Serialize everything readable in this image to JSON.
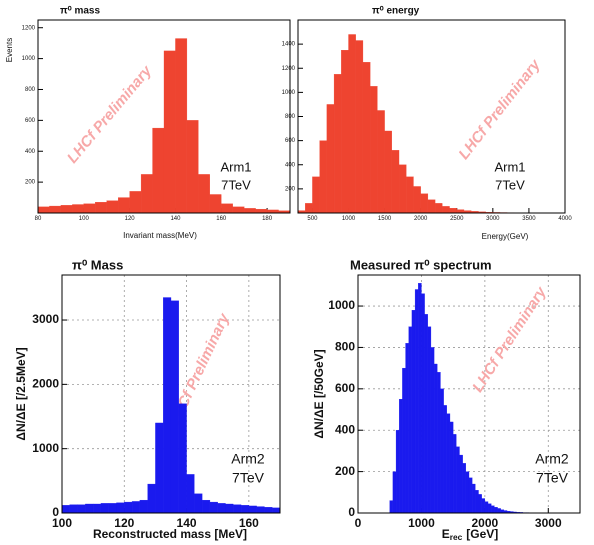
{
  "chart_data": [
    {
      "type": "histogram",
      "title": "π⁰ mass",
      "x_label": "Invariant mass(MeV)",
      "y_label": "Events",
      "annotations": [
        "Arm1",
        "7TeV"
      ],
      "watermark": "LHCf Preliminary",
      "color": "#ee4430",
      "grid": false,
      "xlim": [
        80,
        190
      ],
      "xticks": [
        80,
        100,
        120,
        140,
        160,
        180
      ],
      "ylim": [
        0,
        1250
      ],
      "yticks": [
        200,
        400,
        600,
        800,
        1000,
        1200
      ],
      "bins": [
        80,
        85,
        90,
        95,
        100,
        105,
        110,
        115,
        120,
        125,
        130,
        135,
        140,
        145,
        150,
        155,
        160,
        165,
        170,
        175,
        180,
        185,
        190
      ],
      "values": [
        40,
        45,
        50,
        55,
        60,
        70,
        80,
        100,
        140,
        250,
        550,
        1050,
        1130,
        600,
        250,
        120,
        60,
        40,
        30,
        25,
        20,
        15
      ]
    },
    {
      "type": "histogram",
      "title": "π⁰ energy",
      "x_label": "Energy(GeV)",
      "annotations": [
        "Arm1",
        "7TeV"
      ],
      "watermark": "LHCf Preliminary",
      "color": "#ee4430",
      "grid": false,
      "xlim": [
        300,
        4000
      ],
      "xticks": [
        500,
        1000,
        1500,
        2000,
        2500,
        3000,
        3500,
        4000
      ],
      "ylim": [
        0,
        1600
      ],
      "yticks": [
        200,
        400,
        600,
        800,
        1000,
        1200,
        1400
      ],
      "bins": [
        300,
        400,
        500,
        600,
        700,
        800,
        900,
        1000,
        1100,
        1200,
        1300,
        1400,
        1500,
        1600,
        1700,
        1800,
        1900,
        2000,
        2100,
        2200,
        2300,
        2400,
        2500,
        2600,
        2700,
        2800,
        2900,
        3000,
        3100,
        3200,
        3300,
        3400,
        3500,
        3600,
        3700,
        3800,
        3900,
        4000
      ],
      "values": [
        20,
        80,
        300,
        600,
        900,
        1150,
        1350,
        1480,
        1430,
        1250,
        1050,
        850,
        680,
        520,
        400,
        300,
        220,
        160,
        110,
        80,
        55,
        40,
        28,
        20,
        14,
        10,
        7,
        5,
        4,
        3,
        2,
        2,
        1,
        1,
        1,
        0,
        0
      ]
    },
    {
      "type": "histogram",
      "title": "π⁰ Mass",
      "x_label": "Reconstructed mass [MeV]",
      "y_label": "ΔN/ΔE [/2.5MeV]",
      "annotations": [
        "Arm2",
        "7TeV"
      ],
      "watermark": "LHCf Preliminary",
      "color": "#1a1aee",
      "grid": true,
      "xlim": [
        100,
        170
      ],
      "xticks": [
        100,
        120,
        140,
        160
      ],
      "ylim": [
        0,
        3700
      ],
      "yticks": [
        0,
        1000,
        2000,
        3000
      ],
      "bins": [
        100,
        102.5,
        105,
        107.5,
        110,
        112.5,
        115,
        117.5,
        120,
        122.5,
        125,
        127.5,
        130,
        132.5,
        135,
        137.5,
        140,
        142.5,
        145,
        147.5,
        150,
        152.5,
        155,
        157.5,
        160,
        162.5,
        165,
        167.5,
        170
      ],
      "values": [
        120,
        130,
        130,
        140,
        140,
        150,
        150,
        160,
        170,
        180,
        200,
        450,
        1400,
        3350,
        3300,
        1700,
        600,
        300,
        200,
        170,
        150,
        140,
        130,
        120,
        110,
        100,
        90,
        80
      ]
    },
    {
      "type": "histogram",
      "title": "Measured π⁰ spectrum",
      "x_label": "E",
      "x_label_sub": "rec",
      "x_label_unit": "[GeV]",
      "y_label": "ΔN/ΔE [/50GeV]",
      "annotations": [
        "Arm2",
        "7TeV"
      ],
      "watermark": "LHCf Preliminary",
      "color": "#1a1aee",
      "grid": true,
      "xlim": [
        0,
        3500
      ],
      "xticks": [
        0,
        1000,
        2000,
        3000
      ],
      "ylim": [
        0,
        1150
      ],
      "yticks": [
        0,
        200,
        400,
        600,
        800,
        1000
      ],
      "bins": [
        500,
        550,
        600,
        650,
        700,
        750,
        800,
        850,
        900,
        950,
        1000,
        1050,
        1100,
        1150,
        1200,
        1250,
        1300,
        1350,
        1400,
        1450,
        1500,
        1550,
        1600,
        1650,
        1700,
        1750,
        1800,
        1850,
        1900,
        1950,
        2000,
        2050,
        2100,
        2150,
        2200,
        2250,
        2300,
        2350,
        2400,
        2450,
        2500,
        2550,
        2600,
        2650,
        2700
      ],
      "values": [
        60,
        200,
        400,
        550,
        700,
        820,
        900,
        980,
        1080,
        1110,
        1060,
        960,
        900,
        800,
        720,
        680,
        600,
        520,
        480,
        440,
        380,
        320,
        280,
        240,
        200,
        170,
        140,
        110,
        90,
        70,
        55,
        45,
        35,
        28,
        22,
        16,
        12,
        9,
        7,
        5,
        4,
        3,
        2,
        2
      ]
    }
  ]
}
